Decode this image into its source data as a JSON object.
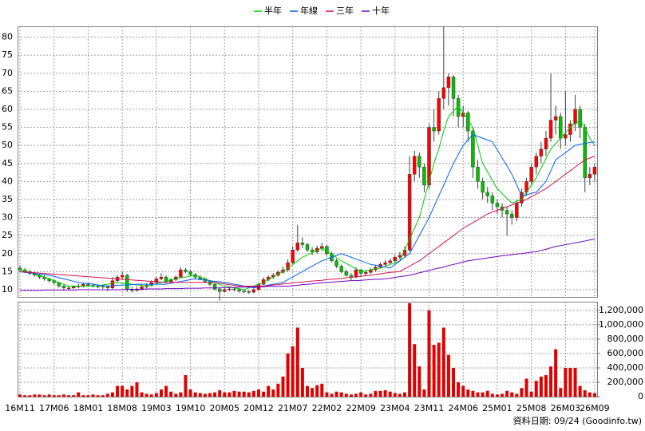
{
  "chart_data": [
    {
      "type": "candlestick",
      "categories": [
        "16M11",
        null,
        null,
        null,
        null,
        null,
        null,
        "17M06",
        null,
        null,
        null,
        null,
        null,
        null,
        "18M01",
        null,
        null,
        null,
        null,
        null,
        null,
        "18M08",
        null,
        null,
        null,
        null,
        null,
        null,
        "19M03",
        null,
        null,
        null,
        null,
        null,
        null,
        "19M10",
        null,
        null,
        null,
        null,
        null,
        null,
        "20M05",
        null,
        null,
        null,
        null,
        null,
        null,
        "20M12",
        null,
        null,
        null,
        null,
        null,
        null,
        "21M07",
        null,
        null,
        null,
        null,
        null,
        null,
        "22M02",
        null,
        null,
        null,
        null,
        null,
        null,
        "22M09",
        null,
        null,
        null,
        null,
        null,
        null,
        "23M04",
        null,
        null,
        null,
        null,
        null,
        null,
        "23M11",
        null,
        null,
        null,
        null,
        null,
        null,
        "24M06",
        null,
        null,
        null,
        null,
        null,
        null,
        "25M01",
        null,
        null,
        null,
        null,
        null,
        null,
        "25M08",
        null,
        null,
        null,
        null,
        null,
        null,
        "26M03",
        null,
        null,
        null,
        null,
        null,
        "26M09"
      ],
      "open": [
        16,
        15.5,
        15,
        14.5,
        14,
        13.5,
        13,
        12.5,
        12,
        11,
        10.5,
        10.5,
        10.8,
        11,
        11.5,
        11.2,
        11,
        11,
        10.8,
        10.5,
        12.5,
        13.5,
        14,
        10,
        9.8,
        10.2,
        10.8,
        11.2,
        12,
        13,
        13.5,
        12.2,
        12.8,
        13.5,
        15.5,
        15,
        14.2,
        13.5,
        13,
        12.3,
        11.5,
        10.2,
        9.5,
        10,
        10.2,
        10,
        9.6,
        9.5,
        9.3,
        10,
        11.5,
        12.8,
        13.5,
        14,
        14.8,
        15.5,
        17.5,
        21,
        23,
        22.5,
        21,
        20.5,
        21.5,
        22,
        20,
        18,
        16.5,
        15,
        14,
        13.5,
        15.5,
        14.5,
        14.8,
        15.5,
        16.2,
        17,
        17.5,
        18,
        19,
        19.5,
        21,
        42,
        47,
        44,
        39,
        55,
        54,
        63,
        66,
        69,
        63,
        58,
        59,
        54,
        44,
        40,
        37,
        36,
        34,
        33,
        32,
        31,
        30,
        34,
        37,
        40,
        44,
        47,
        49,
        52,
        57,
        58,
        52,
        53,
        56,
        60,
        55,
        41,
        42
      ],
      "high": [
        16.8,
        16,
        15.4,
        15,
        14.4,
        14,
        13.4,
        12.8,
        12.2,
        11.4,
        11,
        11.2,
        11.6,
        12,
        12,
        11.8,
        11.5,
        11.4,
        11.2,
        13.5,
        14,
        15,
        14.4,
        10.8,
        10.8,
        11.4,
        11.8,
        12.6,
        13.6,
        14.6,
        14,
        13.2,
        14,
        16.2,
        16,
        15.4,
        14.6,
        14,
        13.4,
        12.6,
        11.8,
        10.6,
        10.6,
        10.8,
        10.6,
        10.4,
        10,
        9.8,
        10.4,
        12,
        13.4,
        14,
        14.6,
        15.4,
        16.4,
        18.4,
        22,
        28,
        24.5,
        23,
        21.8,
        22.2,
        23,
        22.4,
        20.5,
        18.6,
        17,
        15.6,
        14.6,
        16.2,
        15.8,
        15.2,
        16,
        16.8,
        17.6,
        18.2,
        18.6,
        19.6,
        20.5,
        22,
        47,
        48.5,
        48,
        45,
        56,
        60,
        65,
        83,
        70,
        69.5,
        64,
        61,
        59.5,
        55,
        46,
        41,
        38.5,
        37,
        35,
        34,
        33,
        32,
        35,
        38,
        41,
        45,
        48,
        51,
        54,
        70,
        61,
        59,
        65,
        57,
        64,
        61,
        56,
        44,
        45
      ],
      "low": [
        14.8,
        14.6,
        14,
        13.6,
        13,
        12.5,
        12,
        11.4,
        10.6,
        10,
        10,
        10.2,
        10.4,
        10.6,
        10.8,
        10.6,
        10.4,
        10.2,
        9.6,
        10.2,
        12,
        13,
        9.4,
        9.2,
        9.4,
        9.8,
        10.4,
        10.8,
        11.6,
        12.6,
        11.8,
        11.8,
        12.4,
        13.2,
        14.6,
        13.8,
        13,
        12.6,
        11.8,
        11,
        9.8,
        7,
        9.2,
        9.6,
        9.6,
        9.2,
        9,
        8.8,
        9,
        9.8,
        11.2,
        12.4,
        13,
        13.6,
        14.4,
        15,
        17,
        20.5,
        21.5,
        20.5,
        19.6,
        20,
        20.8,
        19.4,
        17.6,
        16,
        14.6,
        13.6,
        12.6,
        13.2,
        13.8,
        13.8,
        14.4,
        15,
        15.8,
        16.6,
        17,
        17.4,
        18.4,
        19,
        20.5,
        40,
        41,
        37,
        38,
        51,
        53,
        60,
        61,
        58,
        55,
        55,
        51,
        41,
        38,
        35,
        34,
        32,
        31,
        30,
        25,
        28,
        29,
        33,
        36,
        39,
        42,
        45,
        47,
        51,
        53,
        49,
        50,
        51,
        54,
        52,
        37,
        39,
        40
      ],
      "close": [
        15.5,
        15,
        14.5,
        14,
        13.5,
        13,
        12.5,
        12,
        11,
        10.5,
        10.5,
        10.8,
        11,
        11.5,
        11.2,
        11,
        11,
        10.8,
        10.5,
        12.5,
        13.5,
        14,
        10,
        9.8,
        10.2,
        10.8,
        11.2,
        12,
        13,
        13.5,
        12.2,
        12.8,
        13.5,
        15.5,
        15,
        14.2,
        13.5,
        13,
        12.3,
        11.5,
        10.2,
        9.5,
        10,
        10.2,
        10,
        9.6,
        9.5,
        9.3,
        10,
        11.5,
        12.8,
        13.5,
        14,
        14.8,
        15.5,
        17.5,
        21,
        23,
        22.5,
        21,
        20.5,
        21.5,
        22,
        20,
        18,
        16.5,
        15,
        14,
        13.5,
        15.5,
        14.5,
        14.8,
        15.5,
        16.2,
        17,
        17.5,
        18,
        19,
        19.5,
        21,
        42,
        47,
        44,
        39,
        55,
        54,
        63,
        66,
        69,
        63,
        58,
        59,
        54,
        44,
        40,
        37,
        36,
        34,
        33,
        32,
        31,
        30,
        34,
        37,
        40,
        44,
        47,
        49,
        52,
        57,
        58,
        52,
        53,
        56,
        60,
        55,
        41,
        42,
        44
      ],
      "up_color": "#ff0000",
      "down_color": "#00c000",
      "series": [
        {
          "name": "半年",
          "color": "#00cc00",
          "values": [
            15.5,
            15.2,
            14.8,
            14.4,
            14,
            13.5,
            13,
            12.5,
            12,
            11.5,
            11,
            11,
            11,
            11,
            11,
            11,
            11,
            11.3,
            11.5,
            11.8,
            12,
            11.8,
            11.7,
            11.5,
            11.3,
            11.2,
            11,
            11.3,
            11.7,
            12,
            12.3,
            12.7,
            13,
            13.3,
            13.5,
            13.8,
            14,
            13.5,
            13,
            12.5,
            12,
            11.5,
            11,
            10.8,
            10.5,
            10.3,
            10,
            10.5,
            11,
            11.5,
            12,
            12.8,
            13.5,
            14.3,
            15,
            16,
            17,
            18,
            19,
            19.6,
            20.3,
            20.9,
            21.5,
            20.6,
            19.8,
            18.9,
            18,
            17.3,
            16.5,
            15.8,
            15,
            15.3,
            15.5,
            15.8,
            16,
            16.5,
            17,
            17.5,
            18,
            21,
            24,
            27,
            30,
            35,
            40,
            45,
            49,
            54,
            58,
            59.5,
            61,
            59,
            57,
            55,
            50,
            45,
            42.7,
            40.3,
            38,
            36.7,
            35.3,
            34,
            34.5,
            35,
            37,
            39,
            41,
            43.7,
            46.3,
            49,
            50.5,
            52,
            53.5,
            55,
            56,
            57,
            55,
            52,
            50
          ]
        },
        {
          "name": "年線",
          "color": "#0060ff",
          "values": [
            15,
            14.8,
            14.7,
            14.5,
            14.3,
            14.2,
            14,
            13.7,
            13.3,
            13,
            12.7,
            12.3,
            12,
            11.8,
            11.7,
            11.5,
            11.3,
            11.2,
            11,
            11.1,
            11.2,
            11.3,
            11.3,
            11.4,
            11.5,
            11.5,
            11.5,
            11.5,
            11.5,
            11.5,
            11.5,
            11.8,
            12,
            12.3,
            12.5,
            12.8,
            13,
            12.8,
            12.7,
            12.5,
            12.3,
            12.2,
            12,
            11.8,
            11.5,
            11.3,
            11,
            10.8,
            10.5,
            10.8,
            11,
            11.3,
            11.5,
            11.8,
            12,
            12.8,
            13.5,
            14.3,
            15,
            15.8,
            16.5,
            17.3,
            18,
            18.5,
            19,
            19.5,
            20,
            19.5,
            19,
            18.5,
            18,
            17.5,
            17,
            16.8,
            16.5,
            16.3,
            16,
            17,
            18,
            19,
            20,
            22.5,
            25,
            27.5,
            30,
            33,
            36,
            39,
            42,
            45,
            47.5,
            50,
            51.5,
            53,
            52.5,
            52,
            51.5,
            51,
            48.8,
            46.5,
            44.3,
            42,
            39,
            36,
            36.3,
            36.7,
            37,
            38.5,
            40,
            43,
            46,
            47,
            48,
            49,
            50,
            50.3,
            50.5,
            50.8,
            51
          ]
        },
        {
          "name": "三年",
          "color": "#d0104c",
          "values": [
            15,
            14.9,
            14.8,
            14.7,
            14.6,
            14.5,
            14.4,
            14.3,
            14.2,
            14.1,
            14,
            13.9,
            13.8,
            13.7,
            13.6,
            13.5,
            13.4,
            13.3,
            13.2,
            13.1,
            13,
            12.9,
            12.8,
            12.7,
            12.6,
            12.5,
            12.4,
            12.3,
            12.2,
            12.1,
            12,
            12,
            12,
            12,
            12,
            12,
            12,
            12,
            12,
            12,
            12,
            11.8,
            11.6,
            11.4,
            11.2,
            11,
            11,
            11,
            11,
            11,
            11,
            11.1,
            11.3,
            11.4,
            11.6,
            11.7,
            11.9,
            12,
            12.1,
            12.3,
            12.4,
            12.5,
            12.6,
            12.8,
            12.9,
            13,
            13.1,
            13.3,
            13.4,
            13.6,
            13.7,
            13.9,
            14,
            14.2,
            14.4,
            14.6,
            14.8,
            14.9,
            15,
            15.8,
            16.5,
            17.3,
            18,
            19,
            20,
            21,
            22,
            23,
            24,
            25,
            26,
            27,
            27.8,
            28.6,
            29.4,
            30.2,
            31,
            31.5,
            32,
            32.5,
            33,
            33.5,
            34,
            34.5,
            35,
            35.8,
            36.5,
            37.3,
            38,
            39,
            40,
            41,
            42,
            43,
            44,
            45,
            46,
            46.5,
            47
          ]
        },
        {
          "name": "十年",
          "color": "#7000c0",
          "values": [
            9.8,
            9.8,
            9.8,
            9.8,
            9.8,
            9.9,
            9.9,
            9.9,
            9.9,
            9.9,
            9.9,
            9.9,
            10,
            10,
            10,
            10,
            10,
            10,
            10,
            10,
            10,
            10,
            10.1,
            10.1,
            10.1,
            10.1,
            10.2,
            10.2,
            10.2,
            10.2,
            10.3,
            10.3,
            10.3,
            10.3,
            10.4,
            10.4,
            10.4,
            10.4,
            10.5,
            10.5,
            10.5,
            10.5,
            10.6,
            10.6,
            10.6,
            10.7,
            10.7,
            10.7,
            10.8,
            10.8,
            10.8,
            10.9,
            10.9,
            10.9,
            11,
            11,
            11.1,
            11.2,
            11.4,
            11.5,
            11.6,
            11.8,
            11.9,
            12,
            12.1,
            12.2,
            12.3,
            12.4,
            12.5,
            12.5,
            12.6,
            12.7,
            12.8,
            12.9,
            12.9,
            13,
            13.2,
            13.4,
            13.6,
            13.8,
            14,
            14.3,
            14.7,
            15,
            15.3,
            15.7,
            16,
            16.3,
            16.7,
            17,
            17.3,
            17.7,
            18,
            18.2,
            18.4,
            18.6,
            18.8,
            19,
            19.2,
            19.4,
            19.5,
            19.7,
            19.9,
            20,
            20.2,
            20.4,
            20.5,
            20.9,
            21.2,
            21.6,
            22,
            22.2,
            22.5,
            22.7,
            23,
            23.2,
            23.5,
            23.8,
            24
          ]
        }
      ],
      "ylim": [
        8,
        83
      ],
      "yticks": [
        10,
        15,
        20,
        25,
        30,
        35,
        40,
        45,
        50,
        55,
        60,
        65,
        70,
        75,
        80
      ],
      "grid": true,
      "legend": "top"
    },
    {
      "type": "bar",
      "values": [
        30000,
        20000,
        20000,
        30000,
        30000,
        20000,
        30000,
        20000,
        20000,
        30000,
        20000,
        20000,
        60000,
        20000,
        20000,
        30000,
        20000,
        20000,
        40000,
        60000,
        150000,
        150000,
        100000,
        150000,
        200000,
        60000,
        40000,
        30000,
        50000,
        100000,
        150000,
        70000,
        40000,
        60000,
        300000,
        100000,
        60000,
        50000,
        40000,
        50000,
        60000,
        90000,
        60000,
        60000,
        80000,
        70000,
        70000,
        60000,
        80000,
        100000,
        70000,
        150000,
        100000,
        180000,
        280000,
        600000,
        700000,
        960000,
        400000,
        150000,
        120000,
        160000,
        180000,
        60000,
        40000,
        70000,
        60000,
        40000,
        30000,
        40000,
        60000,
        30000,
        40000,
        80000,
        80000,
        90000,
        70000,
        50000,
        40000,
        60000,
        1300000,
        730000,
        420000,
        100000,
        1200000,
        720000,
        750000,
        960000,
        580000,
        400000,
        200000,
        150000,
        100000,
        80000,
        60000,
        60000,
        80000,
        40000,
        30000,
        40000,
        80000,
        60000,
        40000,
        120000,
        250000,
        70000,
        220000,
        280000,
        300000,
        420000,
        660000,
        120000,
        400000,
        400000,
        400000,
        150000,
        90000,
        60000,
        50000
      ],
      "color": "#e00000",
      "ylim": [
        0,
        1320000
      ],
      "yticks": [
        0,
        {
          "value": 200000,
          "label": "200,000"
        },
        {
          "value": 400000,
          "label": "400,000"
        },
        {
          "value": 600000,
          "label": "600,000"
        },
        {
          "value": 800000,
          "label": "800,000"
        },
        {
          "value": 1000000,
          "label": "1,000,000"
        },
        {
          "value": 1200000,
          "label": "1,200,000"
        }
      ],
      "grid": true
    }
  ],
  "footer": "資料日期: 09/24 (Goodinfo.tw)"
}
